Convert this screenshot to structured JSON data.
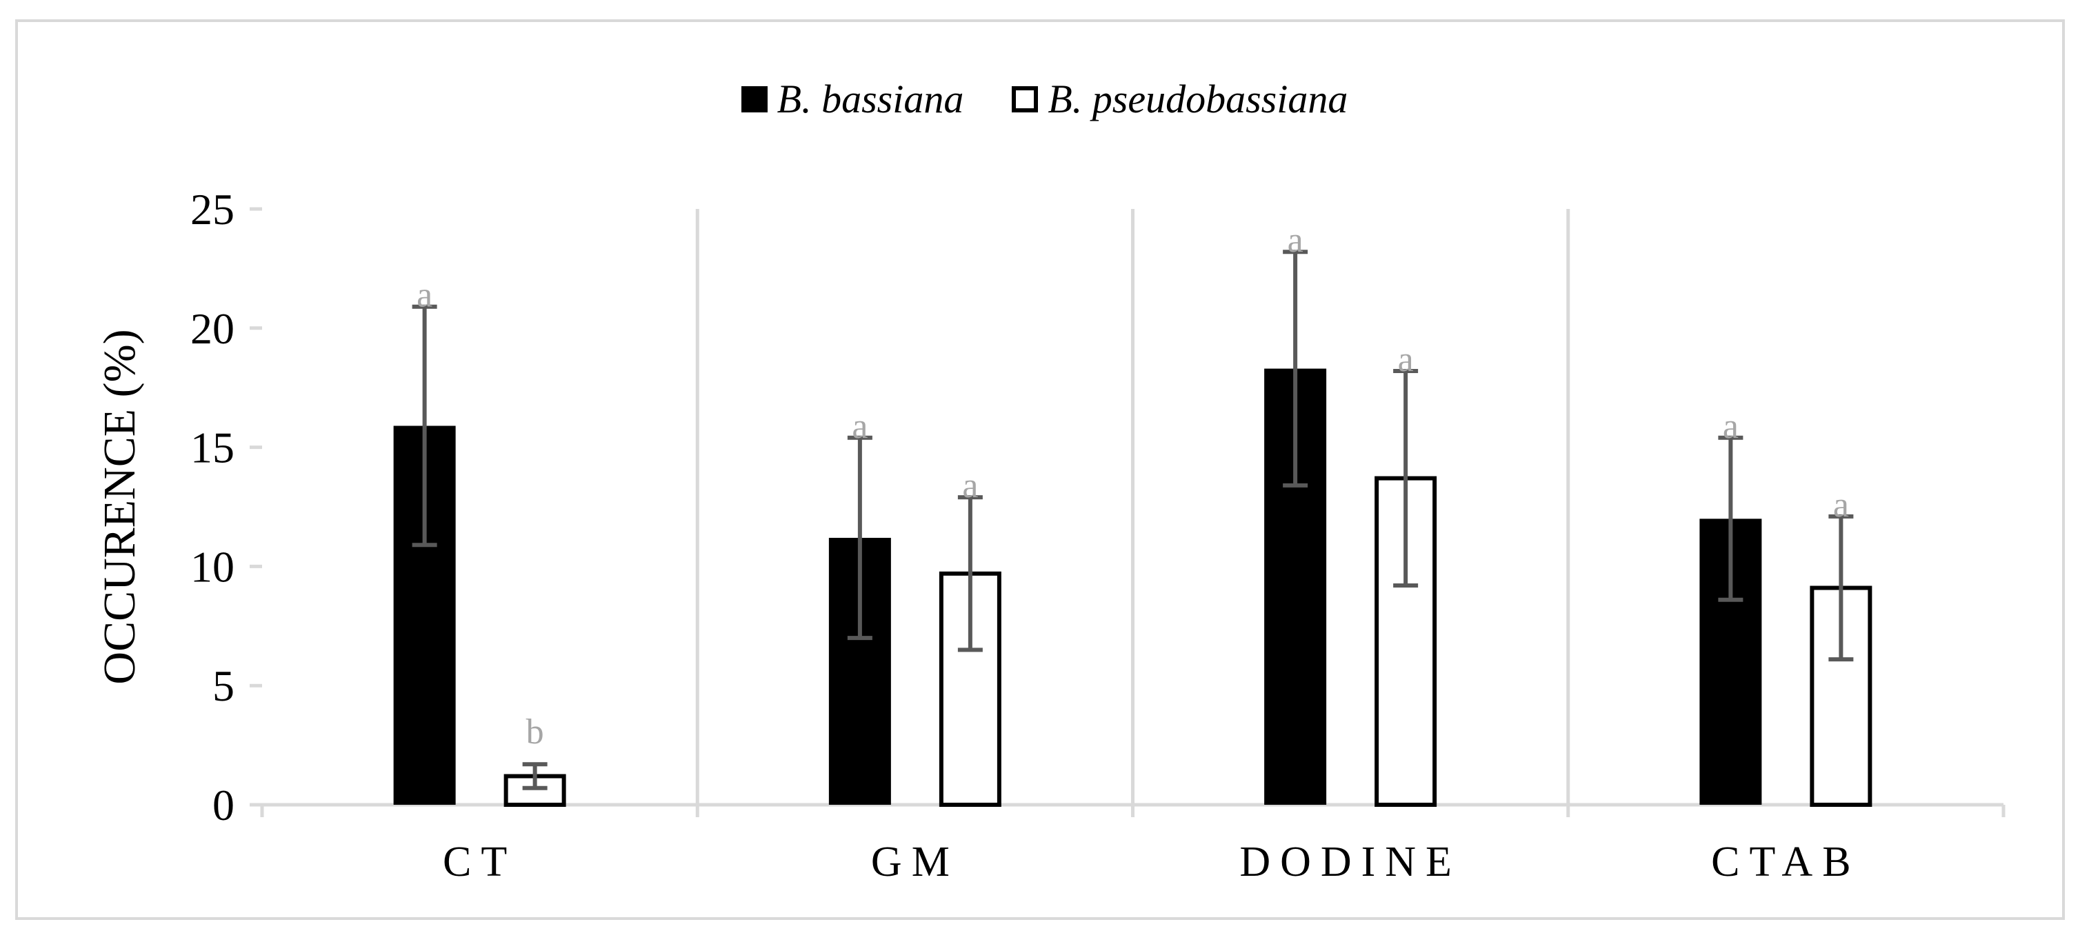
{
  "chart_data": {
    "type": "bar",
    "title": "",
    "xlabel": "",
    "ylabel": "OCCURENCE (%)",
    "ylim": [
      0,
      25
    ],
    "yticks": [
      0,
      5,
      10,
      15,
      20,
      25
    ],
    "categories": [
      "CT",
      "GM",
      "DODINE",
      "CTAB"
    ],
    "legend_position": "top-center",
    "grid": "vertical separators between categories",
    "series": [
      {
        "name": "B. bassiana",
        "fill": "#000000",
        "values": [
          15.9,
          11.2,
          18.3,
          12.0
        ],
        "error": [
          5.0,
          4.2,
          4.9,
          3.4
        ],
        "letters": [
          "a",
          "a",
          "a",
          "a"
        ]
      },
      {
        "name": "B. pseudobassiana",
        "fill": "#ffffff",
        "values": [
          1.2,
          9.7,
          13.7,
          9.1
        ],
        "error": [
          0.5,
          3.2,
          4.5,
          3.0
        ],
        "letters": [
          "b",
          "a",
          "a",
          "a"
        ]
      }
    ],
    "colors": {
      "axis": "#d9d9d9",
      "error_bar": "#595959",
      "letter": "#a6a6a6"
    }
  }
}
